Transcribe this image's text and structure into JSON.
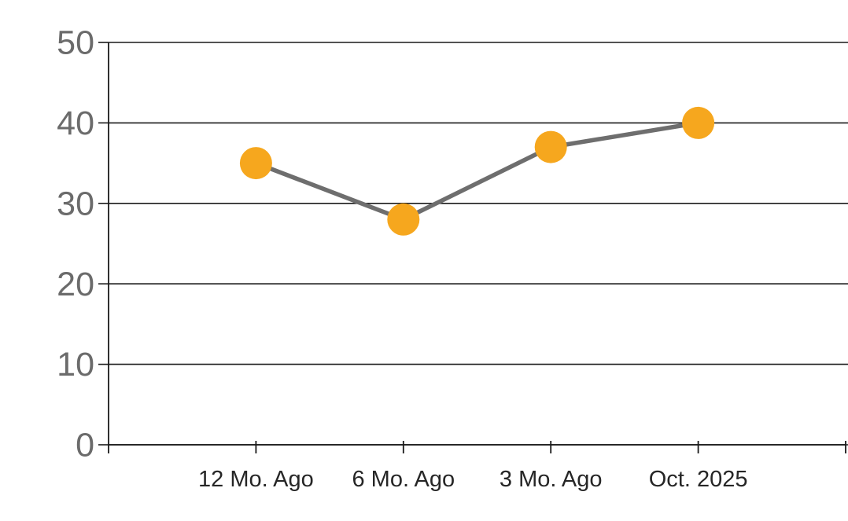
{
  "chart_data": {
    "type": "line",
    "categories": [
      "12 Mo. Ago",
      "6 Mo. Ago",
      "3 Mo. Ago",
      "Oct. 2025"
    ],
    "series": [
      {
        "name": "values",
        "values": [
          35,
          28,
          37,
          40
        ]
      }
    ],
    "title": "",
    "xlabel": "",
    "ylabel": "",
    "ylim": [
      0,
      50
    ],
    "ytick_step": 10,
    "y_tick_labels": [
      "0",
      "10",
      "20",
      "30",
      "40",
      "50"
    ],
    "grid": "horizontal",
    "legend": "none",
    "colors": {
      "marker_fill": "#F6A71E",
      "line_stroke": "#6E6E6E",
      "grid_stroke": "#1A1A1A",
      "axis_stroke": "#1A1A1A",
      "y_label_color": "#6B6B6B",
      "x_label_color": "#262626",
      "background": "#FFFFFF"
    }
  }
}
